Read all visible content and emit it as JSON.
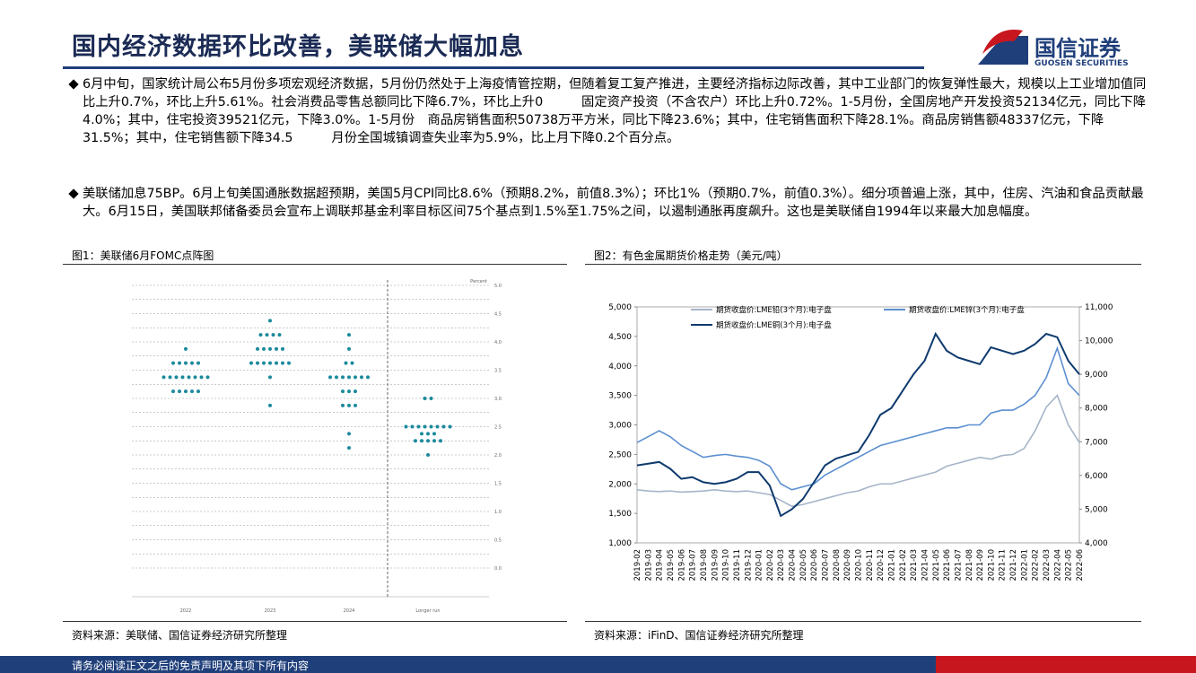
{
  "header": {
    "title": "国内经济数据环比改善，美联储大幅加息",
    "logo_text": "国信证券",
    "logo_sub": "GUOSEN SECURITIES"
  },
  "bullets": [
    "6月中旬，国家统计局公布5月份多项宏观经济数据，5月份仍然处于上海疫情管控期，但随着复工复产推进，主要经济指标边际改善，其中工业部门的恢复弹性最大，规模以上工业增加值同比上升0.7%，环比上升5.61%。社会消费品零售总额同比下降6.7%，环比上升0　　　固定资产投资（不含农户）环比上升0.72%。1-5月份，全国房地产开发投资52134亿元，同比下降4.0%；其中，住宅投资39521亿元，下降3.0%。1-5月份　商品房销售面积50738万平方米，同比下降23.6%；其中，住宅销售面积下降28.1%。商品房销售额48337亿元，下降31.5%；其中，住宅销售额下降34.5　　　月份全国城镇调查失业率为5.9%，比上月下降0.2个百分点。",
    "美联储加息75BP。6月上旬美国通胀数据超预期，美国5月CPI同比8.6%（预期8.2%，前值8.3%）；环比1%（预期0.7%，前值0.3%）。细分项普遍上涨，其中，住房、汽油和食品贡献最大。6月15日，美国联邦储备委员会宣布上调联邦基金利率目标区间75个基点到1.5%至1.75%之间，以遏制通胀再度飙升。这也是美联储自1994年以来最大加息幅度。"
  ],
  "footer": "请务必阅读正文之后的免责声明及其项下所有内容",
  "chart_data": [
    {
      "type": "dot",
      "title": "图1：美联储6月FOMC点阵图",
      "source": "资料来源：美联储、国信证券经济研究所整理",
      "y_label": "Percent",
      "color": "#1b8a9c",
      "categories": [
        "2022",
        "2023",
        "2024",
        "Longer run"
      ],
      "columns": [
        {
          "rates": [
            3.875,
            3.625,
            3.375,
            3.125
          ],
          "counts": [
            1,
            5,
            8,
            5
          ]
        },
        {
          "rates": [
            4.375,
            4.125,
            3.875,
            3.625,
            3.375,
            2.875
          ],
          "counts": [
            1,
            4,
            5,
            7,
            1,
            1
          ]
        },
        {
          "rates": [
            4.125,
            3.875,
            3.625,
            3.375,
            3.125,
            2.875,
            2.375,
            2.125
          ],
          "counts": [
            1,
            1,
            2,
            7,
            3,
            3,
            1,
            1
          ]
        },
        {
          "rates": [
            3.0,
            2.5,
            2.375,
            2.25,
            2.0
          ],
          "counts": [
            2,
            8,
            3,
            5,
            1
          ]
        }
      ],
      "ylim": [
        0,
        5
      ],
      "yticks": [
        {
          "value": 0,
          "label": "0.0"
        },
        {
          "value": 0.5,
          "label": "0.5"
        },
        {
          "value": 1,
          "label": "1.0"
        },
        {
          "value": 1.5,
          "label": "1.5"
        },
        {
          "value": 2,
          "label": "2.0"
        },
        {
          "value": 2.5,
          "label": "2.5"
        },
        {
          "value": 3,
          "label": "3.0"
        },
        {
          "value": 3.5,
          "label": "3.5"
        },
        {
          "value": 4,
          "label": "4.0"
        },
        {
          "value": 4.5,
          "label": "4.5"
        },
        {
          "value": 5,
          "label": "5.0"
        }
      ]
    },
    {
      "type": "line",
      "title": "图2：有色金属期货价格走势（美元/吨）",
      "source": "资料来源：iFinD、国信证券经济研究所整理",
      "categories": [
        "2019-02",
        "2019-03",
        "2019-04",
        "2019-05",
        "2019-06",
        "2019-07",
        "2019-08",
        "2019-09",
        "2019-10",
        "2019-11",
        "2019-12",
        "2020-01",
        "2020-02",
        "2020-03",
        "2020-04",
        "2020-05",
        "2020-06",
        "2020-07",
        "2020-08",
        "2020-09",
        "2020-10",
        "2020-11",
        "2020-12",
        "2021-01",
        "2021-02",
        "2021-03",
        "2021-04",
        "2021-05",
        "2021-06",
        "2021-07",
        "2021-08",
        "2021-09",
        "2021-10",
        "2021-11",
        "2021-12",
        "2022-01",
        "2022-02",
        "2022-03",
        "2022-04",
        "2022-05",
        "2022-06"
      ],
      "series": [
        {
          "name": "期货收盘价:LME铅(3个月):电子盘",
          "color": "#a6b4c8",
          "values": [
            1900,
            1880,
            1870,
            1880,
            1860,
            1870,
            1880,
            1900,
            1880,
            1870,
            1880,
            1850,
            1820,
            1720,
            1620,
            1650,
            1700,
            1750,
            1800,
            1850,
            1880,
            1950,
            2000,
            2000,
            2050,
            2100,
            2150,
            2200,
            2300,
            2350,
            2400,
            2450,
            2420,
            2480,
            2500,
            2600,
            2900,
            3300,
            3500,
            3000,
            2700
          ]
        },
        {
          "name": "期货收盘价:LME锌(3个月):电子盘",
          "color": "#5b8fd0",
          "values": [
            2700,
            2800,
            2900,
            2800,
            2650,
            2550,
            2450,
            2480,
            2500,
            2470,
            2450,
            2400,
            2300,
            2000,
            1900,
            1950,
            2000,
            2150,
            2250,
            2350,
            2450,
            2550,
            2650,
            2700,
            2750,
            2800,
            2850,
            2900,
            2950,
            2950,
            3000,
            3000,
            3200,
            3250,
            3250,
            3350,
            3500,
            3800,
            4300,
            3700,
            3500
          ]
        },
        {
          "name": "期货收盘价:LME铜(3个月):电子盘",
          "color": "#0e3a6e",
          "axis": "y2",
          "values": [
            6300,
            6350,
            6400,
            6200,
            5900,
            5950,
            5800,
            5750,
            5800,
            5900,
            6100,
            6100,
            5700,
            4800,
            5000,
            5300,
            5800,
            6300,
            6500,
            6600,
            6700,
            7200,
            7800,
            8000,
            8500,
            9000,
            9400,
            10200,
            9700,
            9500,
            9400,
            9300,
            9800,
            9700,
            9600,
            9700,
            9900,
            10200,
            10100,
            9400,
            9000
          ]
        }
      ],
      "ylim": [
        1000,
        5000
      ],
      "yticks": [
        {
          "value": 1000,
          "label": "1,000"
        },
        {
          "value": 1500,
          "label": "1,500"
        },
        {
          "value": 2000,
          "label": "2,000"
        },
        {
          "value": 2500,
          "label": "2,500"
        },
        {
          "value": 3000,
          "label": "3,000"
        },
        {
          "value": 3500,
          "label": "3,500"
        },
        {
          "value": 4000,
          "label": "4,000"
        },
        {
          "value": 4500,
          "label": "4,500"
        },
        {
          "value": 5000,
          "label": "5,000"
        }
      ],
      "y2lim": [
        4000,
        11000
      ],
      "y2ticks": [
        {
          "value": 4000,
          "label": "4,000"
        },
        {
          "value": 5000,
          "label": "5,000"
        },
        {
          "value": 6000,
          "label": "6,000"
        },
        {
          "value": 7000,
          "label": "7,000"
        },
        {
          "value": 8000,
          "label": "8,000"
        },
        {
          "value": 9000,
          "label": "9,000"
        },
        {
          "value": 10000,
          "label": "10,000"
        },
        {
          "value": 11000,
          "label": "11,000"
        }
      ]
    }
  ]
}
